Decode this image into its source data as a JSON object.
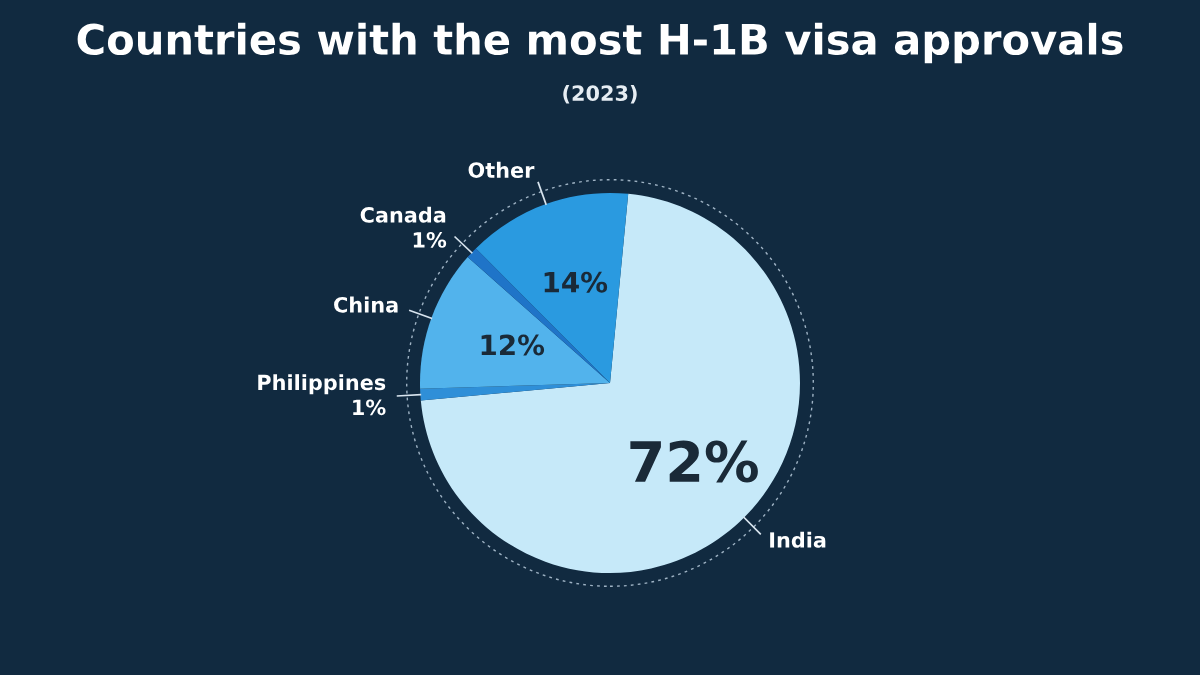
{
  "chart_data": {
    "type": "pie",
    "title": "Countries with the most H-1B visa approvals",
    "subtitle": "(2023)",
    "categories": [
      "India",
      "Philippines",
      "China",
      "Canada",
      "Other"
    ],
    "values": [
      72,
      1,
      12,
      1,
      14
    ],
    "colors": [
      "#c6e9f9",
      "#2f8fd8",
      "#52b3ec",
      "#1f74c8",
      "#2a9ae0"
    ],
    "value_labels": [
      "72%",
      "1%",
      "12%",
      "1%",
      "14%"
    ]
  }
}
